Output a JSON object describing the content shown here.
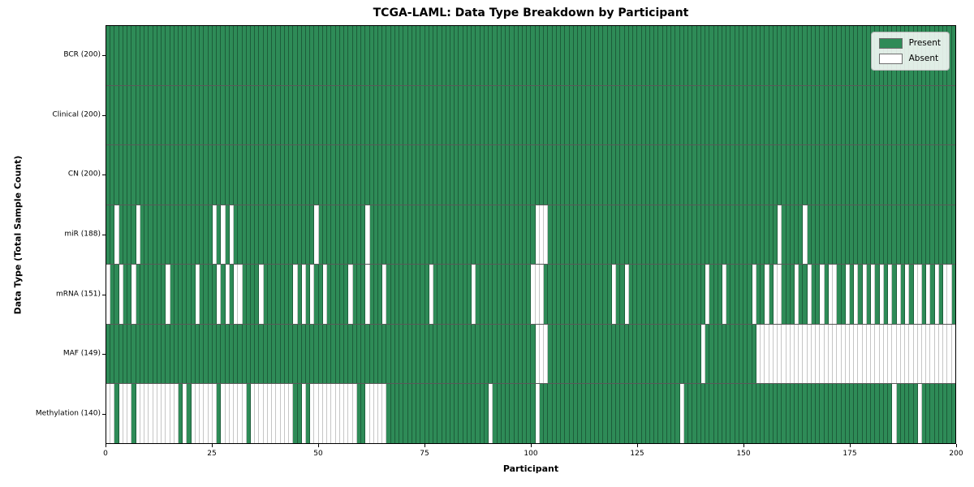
{
  "title": "TCGA-LAML: Data Type Breakdown by Participant",
  "xlabel": "Participant",
  "ylabel": "Data Type (Total Sample Count)",
  "legend": {
    "present_label": "Present",
    "absent_label": "Absent"
  },
  "colors": {
    "present": "#2e8b57",
    "absent": "#ffffff",
    "grid_on_present": "rgba(8,32,20,0.42)",
    "grid_on_absent": "#c6c6c6"
  },
  "x_ticks": [
    0,
    25,
    50,
    75,
    100,
    125,
    150,
    175,
    200
  ],
  "chart_data": {
    "type": "heatmap",
    "n_participants": 200,
    "x_range": [
      0,
      200
    ],
    "legend_position": "upper right",
    "cell_states": [
      "Present",
      "Absent"
    ],
    "rows": [
      {
        "name": "BCR",
        "label": "BCR (200)",
        "total": 200,
        "absent": []
      },
      {
        "name": "Clinical",
        "label": "Clinical (200)",
        "total": 200,
        "absent": []
      },
      {
        "name": "CN",
        "label": "CN (200)",
        "total": 200,
        "absent": []
      },
      {
        "name": "miR",
        "label": "miR (188)",
        "total": 188,
        "absent": [
          2,
          7,
          25,
          27,
          29,
          49,
          61,
          101,
          102,
          103,
          158,
          164
        ]
      },
      {
        "name": "mRNA",
        "label": "mRNA (151)",
        "total": 151,
        "absent": [
          0,
          3,
          6,
          14,
          21,
          26,
          28,
          30,
          31,
          36,
          44,
          46,
          48,
          51,
          57,
          61,
          65,
          76,
          86,
          100,
          101,
          102,
          119,
          122,
          141,
          145,
          152,
          155,
          157,
          158,
          162,
          165,
          168,
          170,
          171,
          174,
          176,
          178,
          180,
          182,
          184,
          186,
          188,
          190,
          191,
          193,
          195,
          197,
          198
        ]
      },
      {
        "name": "MAF",
        "label": "MAF (149)",
        "total": 149,
        "absent": [
          101,
          102,
          103,
          140,
          153,
          154,
          155,
          156,
          157,
          158,
          159,
          160,
          161,
          162,
          163,
          164,
          165,
          166,
          167,
          168,
          169,
          170,
          171,
          172,
          173,
          174,
          175,
          176,
          177,
          178,
          179,
          180,
          181,
          182,
          183,
          184,
          185,
          186,
          187,
          188,
          189,
          190,
          191,
          192,
          193,
          194,
          195,
          196,
          197,
          198,
          199
        ]
      },
      {
        "name": "Methylation",
        "label": "Methylation (140)",
        "total": 140,
        "absent": [
          0,
          1,
          3,
          4,
          5,
          7,
          8,
          9,
          10,
          11,
          12,
          13,
          14,
          15,
          16,
          18,
          20,
          21,
          22,
          23,
          24,
          25,
          27,
          28,
          29,
          30,
          31,
          32,
          34,
          35,
          36,
          37,
          38,
          39,
          40,
          41,
          42,
          43,
          46,
          48,
          49,
          50,
          51,
          52,
          53,
          54,
          55,
          56,
          57,
          58,
          61,
          62,
          63,
          64,
          65,
          90,
          101,
          135,
          185,
          191
        ]
      }
    ]
  }
}
